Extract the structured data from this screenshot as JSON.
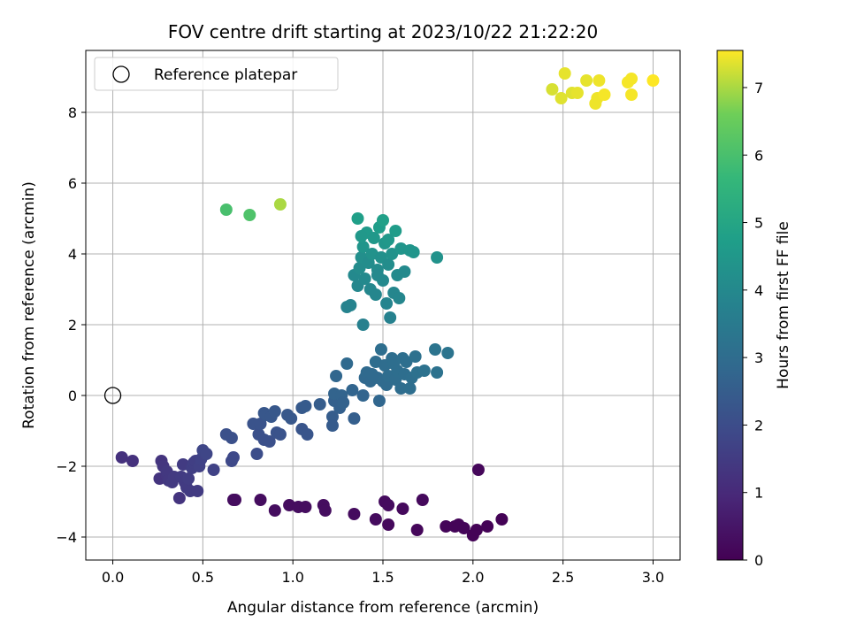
{
  "chart_data": {
    "type": "scatter",
    "title": "FOV centre drift starting at 2023/10/22 21:22:20",
    "xlabel": "Angular distance from reference (arcmin)",
    "ylabel": "Rotation from reference (arcmin)",
    "xlim": [
      -0.15,
      3.15
    ],
    "ylim": [
      -4.65,
      9.75
    ],
    "xticks": [
      "0.0",
      "0.5",
      "1.0",
      "1.5",
      "2.0",
      "2.5",
      "3.0"
    ],
    "yticks": [
      "−4",
      "−2",
      "0",
      "2",
      "4",
      "6",
      "8"
    ],
    "grid": true,
    "legend": {
      "position": "top-left",
      "entries": [
        "Reference platepar"
      ]
    },
    "reference_point": {
      "x": 0.0,
      "y": 0.0
    },
    "colorbar": {
      "label": "Hours from first FF file",
      "min": 0,
      "max": 7.55,
      "ticks": [
        "0",
        "1",
        "2",
        "3",
        "4",
        "5",
        "6",
        "7"
      ],
      "colormap": "viridis"
    },
    "points": [
      {
        "x": 0.67,
        "y": -2.95,
        "h": 0.3
      },
      {
        "x": 0.68,
        "y": -2.95,
        "h": 0.3
      },
      {
        "x": 0.82,
        "y": -2.95,
        "h": 0.3
      },
      {
        "x": 0.9,
        "y": -3.25,
        "h": 0.3
      },
      {
        "x": 0.98,
        "y": -3.1,
        "h": 0.3
      },
      {
        "x": 1.03,
        "y": -3.15,
        "h": 0.3
      },
      {
        "x": 1.07,
        "y": -3.15,
        "h": 0.3
      },
      {
        "x": 1.17,
        "y": -3.1,
        "h": 0.3
      },
      {
        "x": 1.18,
        "y": -3.25,
        "h": 0.3
      },
      {
        "x": 1.34,
        "y": -3.35,
        "h": 0.25
      },
      {
        "x": 1.46,
        "y": -3.5,
        "h": 0.25
      },
      {
        "x": 1.51,
        "y": -3.0,
        "h": 0.25
      },
      {
        "x": 1.53,
        "y": -3.1,
        "h": 0.25
      },
      {
        "x": 1.53,
        "y": -3.65,
        "h": 0.2
      },
      {
        "x": 1.61,
        "y": -3.2,
        "h": 0.2
      },
      {
        "x": 1.69,
        "y": -3.8,
        "h": 0.15
      },
      {
        "x": 1.72,
        "y": -2.95,
        "h": 0.2
      },
      {
        "x": 1.85,
        "y": -3.7,
        "h": 0.1
      },
      {
        "x": 1.9,
        "y": -3.7,
        "h": 0.1
      },
      {
        "x": 1.92,
        "y": -3.65,
        "h": 0.1
      },
      {
        "x": 1.95,
        "y": -3.75,
        "h": 0.1
      },
      {
        "x": 2.0,
        "y": -3.95,
        "h": 0.05
      },
      {
        "x": 2.02,
        "y": -3.8,
        "h": 0.05
      },
      {
        "x": 2.08,
        "y": -3.7,
        "h": 0.05
      },
      {
        "x": 2.16,
        "y": -3.5,
        "h": 0.05
      },
      {
        "x": 2.03,
        "y": -2.1,
        "h": 0.15
      },
      {
        "x": 0.05,
        "y": -1.75,
        "h": 1.2
      },
      {
        "x": 0.11,
        "y": -1.85,
        "h": 1.2
      },
      {
        "x": 0.26,
        "y": -2.35,
        "h": 1.3
      },
      {
        "x": 0.27,
        "y": -1.85,
        "h": 1.3
      },
      {
        "x": 0.28,
        "y": -2.0,
        "h": 1.35
      },
      {
        "x": 0.3,
        "y": -2.25,
        "h": 1.35
      },
      {
        "x": 0.3,
        "y": -2.15,
        "h": 1.4
      },
      {
        "x": 0.31,
        "y": -2.4,
        "h": 1.4
      },
      {
        "x": 0.33,
        "y": -2.45,
        "h": 1.45
      },
      {
        "x": 0.34,
        "y": -2.3,
        "h": 1.45
      },
      {
        "x": 0.37,
        "y": -2.9,
        "h": 1.3
      },
      {
        "x": 0.38,
        "y": -2.3,
        "h": 1.5
      },
      {
        "x": 0.39,
        "y": -1.95,
        "h": 1.5
      },
      {
        "x": 0.4,
        "y": -2.45,
        "h": 1.5
      },
      {
        "x": 0.41,
        "y": -2.6,
        "h": 1.5
      },
      {
        "x": 0.42,
        "y": -2.35,
        "h": 1.55
      },
      {
        "x": 0.43,
        "y": -2.7,
        "h": 1.5
      },
      {
        "x": 0.44,
        "y": -2.05,
        "h": 1.6
      },
      {
        "x": 0.45,
        "y": -1.9,
        "h": 1.6
      },
      {
        "x": 0.46,
        "y": -1.85,
        "h": 1.6
      },
      {
        "x": 0.47,
        "y": -2.7,
        "h": 1.5
      },
      {
        "x": 0.48,
        "y": -2.0,
        "h": 1.65
      },
      {
        "x": 0.49,
        "y": -1.8,
        "h": 1.7
      },
      {
        "x": 0.5,
        "y": -1.55,
        "h": 1.8
      },
      {
        "x": 0.52,
        "y": -1.65,
        "h": 1.8
      },
      {
        "x": 0.56,
        "y": -2.1,
        "h": 1.7
      },
      {
        "x": 0.63,
        "y": -1.1,
        "h": 2.1
      },
      {
        "x": 0.66,
        "y": -1.2,
        "h": 2.1
      },
      {
        "x": 0.66,
        "y": -1.85,
        "h": 1.9
      },
      {
        "x": 0.67,
        "y": -1.75,
        "h": 1.9
      },
      {
        "x": 0.78,
        "y": -0.8,
        "h": 2.2
      },
      {
        "x": 0.8,
        "y": -1.65,
        "h": 2.0
      },
      {
        "x": 0.81,
        "y": -1.1,
        "h": 2.1
      },
      {
        "x": 0.82,
        "y": -0.8,
        "h": 2.2
      },
      {
        "x": 0.84,
        "y": -1.25,
        "h": 2.1
      },
      {
        "x": 0.84,
        "y": -0.5,
        "h": 2.3
      },
      {
        "x": 0.85,
        "y": -0.55,
        "h": 2.3
      },
      {
        "x": 0.87,
        "y": -1.3,
        "h": 2.1
      },
      {
        "x": 0.88,
        "y": -0.6,
        "h": 2.3
      },
      {
        "x": 0.9,
        "y": -0.45,
        "h": 2.35
      },
      {
        "x": 0.91,
        "y": -1.05,
        "h": 2.2
      },
      {
        "x": 0.93,
        "y": -1.1,
        "h": 2.2
      },
      {
        "x": 0.97,
        "y": -0.55,
        "h": 2.35
      },
      {
        "x": 0.99,
        "y": -0.65,
        "h": 2.35
      },
      {
        "x": 1.05,
        "y": -0.35,
        "h": 2.4
      },
      {
        "x": 1.05,
        "y": -0.95,
        "h": 2.25
      },
      {
        "x": 1.07,
        "y": -0.3,
        "h": 2.45
      },
      {
        "x": 1.08,
        "y": -1.1,
        "h": 2.25
      },
      {
        "x": 1.15,
        "y": -0.25,
        "h": 2.5
      },
      {
        "x": 1.22,
        "y": -0.6,
        "h": 2.5
      },
      {
        "x": 1.22,
        "y": -0.85,
        "h": 2.45
      },
      {
        "x": 1.23,
        "y": -0.15,
        "h": 2.6
      },
      {
        "x": 1.23,
        "y": 0.05,
        "h": 2.7
      },
      {
        "x": 1.24,
        "y": 0.55,
        "h": 2.8
      },
      {
        "x": 1.26,
        "y": -0.35,
        "h": 2.6
      },
      {
        "x": 1.27,
        "y": 0.0,
        "h": 2.7
      },
      {
        "x": 1.28,
        "y": -0.2,
        "h": 2.65
      },
      {
        "x": 1.3,
        "y": 0.9,
        "h": 2.9
      },
      {
        "x": 1.33,
        "y": 0.15,
        "h": 2.75
      },
      {
        "x": 1.34,
        "y": -0.65,
        "h": 2.55
      },
      {
        "x": 1.39,
        "y": 0.0,
        "h": 2.75
      },
      {
        "x": 1.4,
        "y": 0.5,
        "h": 2.85
      },
      {
        "x": 1.41,
        "y": 0.65,
        "h": 2.9
      },
      {
        "x": 1.43,
        "y": 0.4,
        "h": 2.85
      },
      {
        "x": 1.44,
        "y": 0.6,
        "h": 2.9
      },
      {
        "x": 1.46,
        "y": 0.95,
        "h": 3.0
      },
      {
        "x": 1.47,
        "y": 0.5,
        "h": 2.9
      },
      {
        "x": 1.48,
        "y": -0.15,
        "h": 2.8
      },
      {
        "x": 1.49,
        "y": 1.3,
        "h": 3.05
      },
      {
        "x": 1.5,
        "y": 0.4,
        "h": 2.95
      },
      {
        "x": 1.51,
        "y": 0.85,
        "h": 3.0
      },
      {
        "x": 1.52,
        "y": 0.3,
        "h": 2.95
      },
      {
        "x": 1.53,
        "y": 0.55,
        "h": 3.0
      },
      {
        "x": 1.55,
        "y": 1.05,
        "h": 3.05
      },
      {
        "x": 1.56,
        "y": 0.9,
        "h": 3.05
      },
      {
        "x": 1.57,
        "y": 0.45,
        "h": 3.0
      },
      {
        "x": 1.58,
        "y": 0.7,
        "h": 3.05
      },
      {
        "x": 1.6,
        "y": 0.2,
        "h": 3.0
      },
      {
        "x": 1.61,
        "y": 1.05,
        "h": 3.1
      },
      {
        "x": 1.62,
        "y": 0.6,
        "h": 3.05
      },
      {
        "x": 1.63,
        "y": 0.95,
        "h": 3.1
      },
      {
        "x": 1.65,
        "y": 0.2,
        "h": 3.05
      },
      {
        "x": 1.66,
        "y": 0.5,
        "h": 3.1
      },
      {
        "x": 1.68,
        "y": 1.1,
        "h": 3.15
      },
      {
        "x": 1.69,
        "y": 0.65,
        "h": 3.15
      },
      {
        "x": 1.73,
        "y": 0.7,
        "h": 3.2
      },
      {
        "x": 1.79,
        "y": 1.3,
        "h": 3.25
      },
      {
        "x": 1.8,
        "y": 0.65,
        "h": 3.2
      },
      {
        "x": 1.86,
        "y": 1.2,
        "h": 3.25
      },
      {
        "x": 1.3,
        "y": 2.5,
        "h": 3.8
      },
      {
        "x": 1.32,
        "y": 2.55,
        "h": 3.8
      },
      {
        "x": 1.39,
        "y": 2.0,
        "h": 3.7
      },
      {
        "x": 1.34,
        "y": 3.4,
        "h": 4.0
      },
      {
        "x": 1.36,
        "y": 3.1,
        "h": 3.95
      },
      {
        "x": 1.37,
        "y": 3.6,
        "h": 4.1
      },
      {
        "x": 1.38,
        "y": 3.9,
        "h": 4.2
      },
      {
        "x": 1.39,
        "y": 4.2,
        "h": 4.4
      },
      {
        "x": 1.4,
        "y": 3.3,
        "h": 4.0
      },
      {
        "x": 1.41,
        "y": 4.6,
        "h": 4.6
      },
      {
        "x": 1.42,
        "y": 3.75,
        "h": 4.15
      },
      {
        "x": 1.43,
        "y": 3.0,
        "h": 3.95
      },
      {
        "x": 1.44,
        "y": 4.0,
        "h": 4.3
      },
      {
        "x": 1.45,
        "y": 4.45,
        "h": 4.5
      },
      {
        "x": 1.46,
        "y": 2.85,
        "h": 3.9
      },
      {
        "x": 1.47,
        "y": 3.55,
        "h": 4.1
      },
      {
        "x": 1.48,
        "y": 4.75,
        "h": 4.7
      },
      {
        "x": 1.49,
        "y": 3.9,
        "h": 4.25
      },
      {
        "x": 1.5,
        "y": 3.25,
        "h": 4.0
      },
      {
        "x": 1.51,
        "y": 4.3,
        "h": 4.45
      },
      {
        "x": 1.52,
        "y": 2.6,
        "h": 3.85
      },
      {
        "x": 1.53,
        "y": 3.7,
        "h": 4.15
      },
      {
        "x": 1.54,
        "y": 2.2,
        "h": 3.75
      },
      {
        "x": 1.55,
        "y": 4.0,
        "h": 4.3
      },
      {
        "x": 1.56,
        "y": 2.9,
        "h": 3.9
      },
      {
        "x": 1.57,
        "y": 4.65,
        "h": 4.65
      },
      {
        "x": 1.58,
        "y": 3.4,
        "h": 4.05
      },
      {
        "x": 1.59,
        "y": 2.75,
        "h": 3.9
      },
      {
        "x": 1.6,
        "y": 4.15,
        "h": 4.4
      },
      {
        "x": 1.62,
        "y": 3.5,
        "h": 4.05
      },
      {
        "x": 1.65,
        "y": 4.1,
        "h": 4.4
      },
      {
        "x": 1.36,
        "y": 5.0,
        "h": 4.75
      },
      {
        "x": 1.5,
        "y": 4.95,
        "h": 4.8
      },
      {
        "x": 1.67,
        "y": 4.05,
        "h": 4.4
      },
      {
        "x": 1.8,
        "y": 3.9,
        "h": 4.3
      },
      {
        "x": 1.38,
        "y": 4.5,
        "h": 4.5
      },
      {
        "x": 1.47,
        "y": 3.4,
        "h": 4.0
      },
      {
        "x": 1.53,
        "y": 4.4,
        "h": 4.5
      },
      {
        "x": 0.63,
        "y": 5.25,
        "h": 6.0
      },
      {
        "x": 0.76,
        "y": 5.1,
        "h": 6.1
      },
      {
        "x": 0.93,
        "y": 5.4,
        "h": 7.0
      },
      {
        "x": 2.44,
        "y": 8.65,
        "h": 7.3
      },
      {
        "x": 2.49,
        "y": 8.4,
        "h": 7.35
      },
      {
        "x": 2.51,
        "y": 9.1,
        "h": 7.4
      },
      {
        "x": 2.55,
        "y": 8.55,
        "h": 7.35
      },
      {
        "x": 2.58,
        "y": 8.55,
        "h": 7.4
      },
      {
        "x": 2.63,
        "y": 8.9,
        "h": 7.4
      },
      {
        "x": 2.68,
        "y": 8.25,
        "h": 7.45
      },
      {
        "x": 2.69,
        "y": 8.4,
        "h": 7.45
      },
      {
        "x": 2.7,
        "y": 8.9,
        "h": 7.45
      },
      {
        "x": 2.73,
        "y": 8.5,
        "h": 7.5
      },
      {
        "x": 2.86,
        "y": 8.85,
        "h": 7.5
      },
      {
        "x": 2.88,
        "y": 8.95,
        "h": 7.5
      },
      {
        "x": 2.88,
        "y": 8.5,
        "h": 7.5
      },
      {
        "x": 3.0,
        "y": 8.9,
        "h": 7.55
      }
    ]
  }
}
